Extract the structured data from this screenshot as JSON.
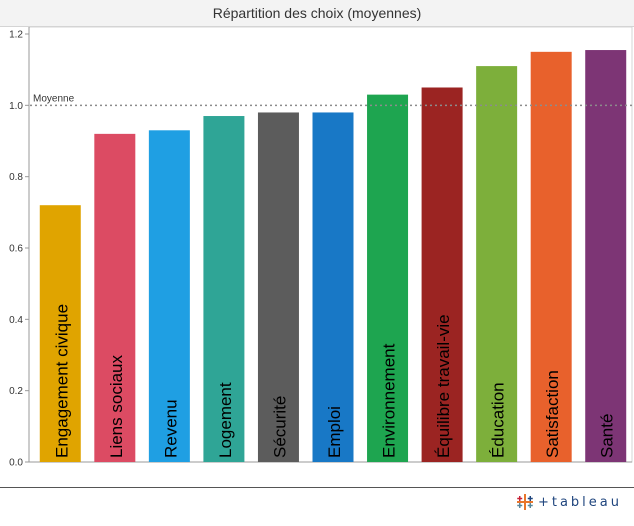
{
  "header": {
    "title": "Répartition des choix (moyennes)"
  },
  "logo": {
    "text": "+tableau"
  },
  "chart_data": {
    "type": "bar",
    "title": "Répartition des choix (moyennes)",
    "xlabel": "",
    "ylabel": "",
    "ylim": [
      0,
      1.2
    ],
    "yticks": [
      "0.0",
      "0.2",
      "0.4",
      "0.6",
      "0.8",
      "1.0",
      "1.2"
    ],
    "grid": false,
    "reference_line": {
      "label": "Moyenne",
      "value": 1.0
    },
    "categories": [
      "Engagement civique",
      "Liens sociaux",
      "Revenu",
      "Logement",
      "Sécurité",
      "Emploi",
      "Environnement",
      "Équilibre travail-vie",
      "Éducation",
      "Satisfaction",
      "Santé"
    ],
    "values": [
      0.72,
      0.92,
      0.93,
      0.97,
      0.98,
      0.98,
      1.03,
      1.05,
      1.11,
      1.15,
      1.155
    ],
    "colors": [
      "#e0a400",
      "#dc4b63",
      "#1f9fe3",
      "#2fa596",
      "#5c5c5c",
      "#1878c6",
      "#1ea550",
      "#9b2422",
      "#7daf3b",
      "#e8612c",
      "#7d3575"
    ]
  }
}
